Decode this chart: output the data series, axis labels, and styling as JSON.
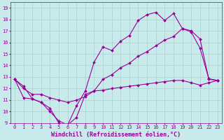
{
  "xlabel": "Windchill (Refroidissement éolien,°C)",
  "bg_color": "#c8eaea",
  "grid_color": "#aed4d4",
  "line_color": "#990099",
  "xlim": [
    -0.5,
    23.5
  ],
  "ylim": [
    9,
    19.5
  ],
  "xticks": [
    0,
    1,
    2,
    3,
    4,
    5,
    6,
    7,
    8,
    9,
    10,
    11,
    12,
    13,
    14,
    15,
    16,
    17,
    18,
    19,
    20,
    21,
    22,
    23
  ],
  "yticks": [
    9,
    10,
    11,
    12,
    13,
    14,
    15,
    16,
    17,
    18,
    19
  ],
  "line1_x": [
    0,
    1,
    2,
    3,
    4,
    5,
    6,
    7,
    8,
    9,
    10,
    11,
    12,
    13,
    14,
    15,
    16,
    17,
    18,
    19,
    20,
    21,
    22,
    23
  ],
  "line1_y": [
    12.8,
    12.2,
    11.1,
    10.8,
    10.3,
    9.0,
    8.85,
    10.5,
    11.8,
    14.3,
    15.6,
    15.3,
    16.1,
    16.6,
    17.9,
    18.4,
    18.6,
    17.9,
    18.5,
    17.2,
    16.9,
    15.5,
    12.85,
    12.7
  ],
  "line2_x": [
    0,
    1,
    2,
    3,
    4,
    5,
    6,
    7,
    8,
    9,
    10,
    11,
    12,
    13,
    14,
    15,
    16,
    17,
    18,
    19,
    20,
    21,
    22,
    23
  ],
  "line2_y": [
    12.8,
    12.0,
    11.5,
    11.5,
    11.2,
    11.0,
    10.8,
    11.0,
    11.3,
    11.8,
    12.8,
    13.2,
    13.8,
    14.2,
    14.8,
    15.2,
    15.7,
    16.2,
    16.5,
    17.2,
    17.0,
    16.3,
    12.8,
    12.7
  ],
  "line3_x": [
    0,
    1,
    2,
    3,
    4,
    5,
    6,
    7,
    8,
    9,
    10,
    11,
    12,
    13,
    14,
    15,
    16,
    17,
    18,
    19,
    20,
    21,
    22,
    23
  ],
  "line3_y": [
    12.8,
    11.2,
    11.1,
    10.8,
    10.0,
    9.2,
    8.85,
    9.5,
    11.5,
    11.8,
    11.85,
    12.0,
    12.1,
    12.2,
    12.3,
    12.4,
    12.5,
    12.6,
    12.7,
    12.7,
    12.5,
    12.3,
    12.5,
    12.7
  ],
  "marker": "D",
  "markersize": 2.0,
  "linewidth": 0.8,
  "tick_fontsize": 5.0,
  "label_fontsize": 6.0
}
